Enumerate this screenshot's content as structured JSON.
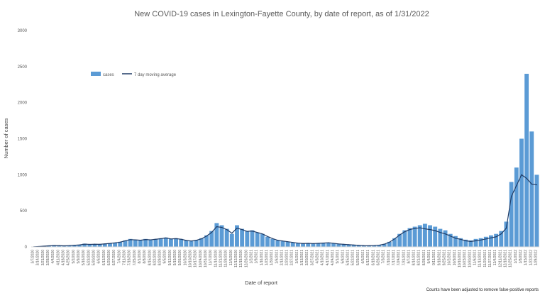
{
  "chart_data": {
    "type": "bar",
    "title": "New COVID-19 cases in Lexington-Fayette County, by date of report, as of 1/31/2022",
    "xlabel": "Date of report",
    "ylabel": "Number of cases",
    "ylim": [
      0,
      3000
    ],
    "yticks": [
      0,
      500,
      1000,
      1500,
      2000,
      2500,
      3000
    ],
    "grid": false,
    "legend_position": "top-left",
    "footnote": "Counts have been adjusted to remove false-positive reports",
    "x": [
      "3/7/2020",
      "3/14/2020",
      "3/21/2020",
      "3/28/2020",
      "4/4/2020",
      "4/11/2020",
      "4/18/2020",
      "4/25/2020",
      "5/2/2020",
      "5/9/2020",
      "5/16/2020",
      "5/23/2020",
      "5/30/2020",
      "6/6/2020",
      "6/13/2020",
      "6/20/2020",
      "6/27/2020",
      "7/4/2020",
      "7/11/2020",
      "7/18/2020",
      "7/25/2020",
      "8/1/2020",
      "8/8/2020",
      "8/15/2020",
      "8/22/2020",
      "8/29/2020",
      "9/5/2020",
      "9/12/2020",
      "9/19/2020",
      "9/26/2020",
      "10/3/2020",
      "10/10/2020",
      "10/17/2020",
      "10/24/2020",
      "10/31/2020",
      "11/7/2020",
      "11/14/2020",
      "11/21/2020",
      "11/28/2020",
      "12/5/2020",
      "12/12/2020",
      "12/19/2020",
      "12/26/2020",
      "1/2/2021",
      "1/9/2021",
      "1/16/2021",
      "1/23/2021",
      "1/30/2021",
      "2/6/2021",
      "2/13/2021",
      "2/20/2021",
      "2/27/2021",
      "3/6/2021",
      "3/13/2021",
      "3/20/2021",
      "3/27/2021",
      "4/3/2021",
      "4/10/2021",
      "4/17/2021",
      "4/24/2021",
      "5/1/2021",
      "5/8/2021",
      "5/15/2021",
      "5/22/2021",
      "5/29/2021",
      "6/5/2021",
      "6/12/2021",
      "6/19/2021",
      "6/26/2021",
      "7/3/2021",
      "7/10/2021",
      "7/17/2021",
      "7/24/2021",
      "7/31/2021",
      "8/7/2021",
      "8/14/2021",
      "8/21/2021",
      "8/28/2021",
      "9/4/2021",
      "9/11/2021",
      "9/18/2021",
      "9/25/2021",
      "10/2/2021",
      "10/9/2021",
      "10/16/2021",
      "10/23/2021",
      "10/30/2021",
      "11/6/2021",
      "11/13/2021",
      "11/20/2021",
      "11/27/2021",
      "12/4/2021",
      "12/11/2021",
      "12/18/2021",
      "12/25/2021",
      "1/1/2022",
      "1/8/2022",
      "1/15/2022",
      "1/22/2022",
      "1/29/2022"
    ],
    "xtick_labels": [
      "3/7/2020",
      "3/14/2020",
      "3/21/2020",
      "3/28/2020",
      "4/4/2020",
      "4/11/2020",
      "4/18/2020",
      "4/25/2020",
      "5/2/2020",
      "5/9/2020",
      "5/16/2020",
      "5/23/2020",
      "5/30/2020",
      "6/6/2020",
      "6/13/2020",
      "6/20/2020",
      "6/27/2020",
      "7/4/2020",
      "7/11/2020",
      "7/18/2020",
      "7/25/2020",
      "8/1/2020",
      "8/8/2020",
      "8/15/2020",
      "8/22/2020",
      "8/29/2020",
      "9/5/2020",
      "9/12/2020",
      "9/19/2020",
      "9/26/2020",
      "10/3/2020",
      "10/10/2020",
      "10/17/2020",
      "10/24/2020",
      "10/31/2020",
      "11/7/2020",
      "11/14/2020",
      "11/21/2020",
      "11/28/2020",
      "12/5/2020",
      "12/12/2020",
      "12/19/2020",
      "12/26/2020",
      "1/2/2021",
      "1/9/2021",
      "1/16/2021",
      "1/23/2021",
      "1/30/2021",
      "2/6/2021",
      "2/13/2021",
      "2/20/2021",
      "2/27/2021",
      "3/6/2021",
      "3/13/2021",
      "3/20/2021",
      "3/27/2021",
      "4/3/2021",
      "4/10/2021",
      "4/17/2021",
      "4/24/2021",
      "5/1/2021",
      "5/8/2021",
      "5/15/2021",
      "5/22/2021",
      "5/29/2021",
      "6/5/2021",
      "6/12/2021",
      "6/19/2021",
      "6/26/2021",
      "7/3/2021",
      "7/10/2021",
      "7/17/2021",
      "7/24/2021",
      "7/31/2021",
      "8/7/2021",
      "8/14/2021",
      "8/21/2021",
      "8/28/2021",
      "9/4/2021",
      "9/11/2021",
      "9/18/2021",
      "9/25/2021",
      "10/2/2021",
      "10/9/2021",
      "10/16/2021",
      "10/23/2021",
      "10/30/2021",
      "11/6/2021",
      "11/13/2021",
      "11/20/2021",
      "11/27/2021",
      "12/4/2021",
      "12/11/2021",
      "12/18/2021",
      "12/25/2021",
      "1/1/2022",
      "1/8/2022",
      "1/15/2022",
      "1/22/2022",
      "1/29/2022"
    ],
    "series": [
      {
        "name": "cases",
        "color": "#5b9bd5",
        "values": [
          2,
          8,
          15,
          20,
          25,
          20,
          15,
          20,
          25,
          30,
          45,
          35,
          40,
          35,
          45,
          50,
          60,
          70,
          90,
          110,
          100,
          90,
          110,
          100,
          110,
          120,
          130,
          110,
          120,
          110,
          90,
          80,
          95,
          120,
          160,
          220,
          330,
          300,
          250,
          180,
          300,
          250,
          220,
          230,
          200,
          180,
          140,
          110,
          90,
          80,
          70,
          60,
          50,
          45,
          50,
          45,
          50,
          55,
          60,
          50,
          40,
          35,
          30,
          25,
          20,
          15,
          15,
          20,
          25,
          40,
          70,
          120,
          180,
          230,
          260,
          280,
          300,
          320,
          300,
          280,
          250,
          230,
          180,
          150,
          120,
          100,
          90,
          110,
          120,
          140,
          160,
          180,
          220,
          350,
          900,
          1100,
          1500,
          2400,
          1600,
          1000
        ]
      },
      {
        "name": "7 day moving average",
        "color": "#1f3b66",
        "values": [
          1,
          5,
          10,
          15,
          18,
          17,
          15,
          18,
          22,
          27,
          38,
          35,
          37,
          36,
          42,
          48,
          56,
          66,
          84,
          100,
          98,
          92,
          102,
          98,
          106,
          114,
          124,
          110,
          114,
          106,
          90,
          82,
          92,
          112,
          150,
          200,
          280,
          270,
          240,
          190,
          260,
          240,
          215,
          220,
          200,
          180,
          145,
          115,
          92,
          82,
          72,
          62,
          52,
          47,
          49,
          46,
          49,
          53,
          57,
          50,
          41,
          36,
          31,
          26,
          21,
          17,
          16,
          19,
          24,
          38,
          65,
          110,
          165,
          210,
          240,
          255,
          265,
          250,
          240,
          225,
          200,
          180,
          150,
          120,
          105,
          85,
          75,
          85,
          95,
          110,
          125,
          140,
          180,
          260,
          700,
          850,
          1000,
          950,
          870,
          860
        ]
      }
    ]
  }
}
